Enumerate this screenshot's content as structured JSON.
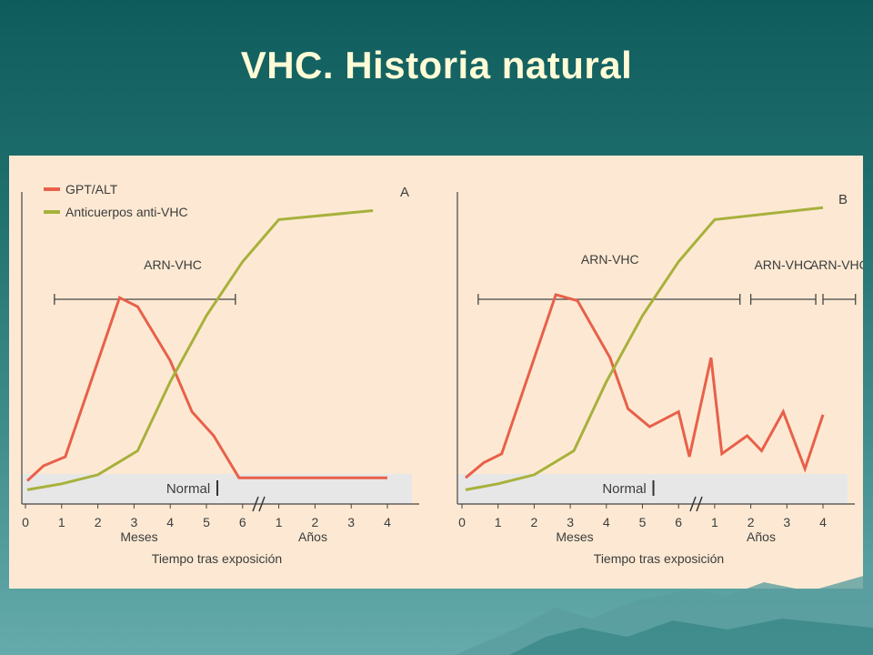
{
  "slide": {
    "title": "VHC. Historia natural"
  },
  "legend": {
    "gpt_label": "GPT/ALT",
    "antibody_label": "Anticuerpos anti-VHC"
  },
  "colors": {
    "gpt": "#e8604a",
    "antibody": "#a7b13b",
    "background": "#fde9d3",
    "normal_band": "#e7e7e7",
    "title": "#fffbd6"
  },
  "chart_data": [
    {
      "type": "line",
      "panel_label": "A",
      "xlabel": "Tiempo tras exposición",
      "x_units": [
        "Meses",
        "Años"
      ],
      "x_ticks": [
        "0",
        "1",
        "2",
        "3",
        "4",
        "5",
        "6",
        "1",
        "2",
        "3",
        "4"
      ],
      "axis_break_after": "6",
      "normal_band_label": "Normal",
      "rna_bars": [
        {
          "label": "ARN-VHC",
          "from": 0.8,
          "to": 5.8
        }
      ],
      "series": [
        {
          "name": "GPT/ALT",
          "x": [
            0.05,
            0.5,
            1.1,
            2.6,
            3.1,
            4.0,
            4.6,
            5.2,
            5.9,
            10.0
          ],
          "y": [
            5,
            10,
            13,
            66,
            63,
            45,
            28,
            20,
            6,
            6
          ]
        },
        {
          "name": "Anticuerpos anti-VHC",
          "x": [
            0.05,
            1.0,
            2.0,
            3.1,
            4.0,
            5.0,
            6.0,
            7.0,
            9.6
          ],
          "y": [
            2,
            4,
            7,
            15,
            38,
            60,
            78,
            92,
            95
          ]
        }
      ]
    },
    {
      "type": "line",
      "panel_label": "B",
      "xlabel": "Tiempo tras exposición",
      "x_units": [
        "Meses",
        "Años"
      ],
      "x_ticks": [
        "0",
        "1",
        "2",
        "3",
        "4",
        "5",
        "6",
        "1",
        "2",
        "3",
        "4"
      ],
      "axis_break_after": "6",
      "normal_band_label": "Normal",
      "rna_bars": [
        {
          "label": "",
          "from": 0.45,
          "to": 7.7
        },
        {
          "label": "ARN-VHC",
          "from": 8.0,
          "to": 9.8
        },
        {
          "label": "ARN-VHC",
          "from": 10.0,
          "to": 10.9
        }
      ],
      "series": [
        {
          "name": "GPT/ALT",
          "x": [
            0.1,
            0.6,
            1.1,
            2.6,
            3.2,
            4.1,
            4.6,
            5.2,
            6.0,
            6.3,
            6.9,
            7.2,
            7.9,
            8.3,
            8.9,
            9.5,
            10.0
          ],
          "y": [
            6,
            11,
            14,
            67,
            65,
            46,
            29,
            23,
            28,
            13,
            46,
            14,
            20,
            15,
            28,
            9,
            27
          ]
        },
        {
          "name": "Anticuerpos anti-VHC",
          "x": [
            0.1,
            1.0,
            2.0,
            3.1,
            4.0,
            5.0,
            6.0,
            7.0,
            10.0
          ],
          "y": [
            2,
            4,
            7,
            15,
            38,
            60,
            78,
            92,
            96
          ]
        }
      ]
    }
  ]
}
